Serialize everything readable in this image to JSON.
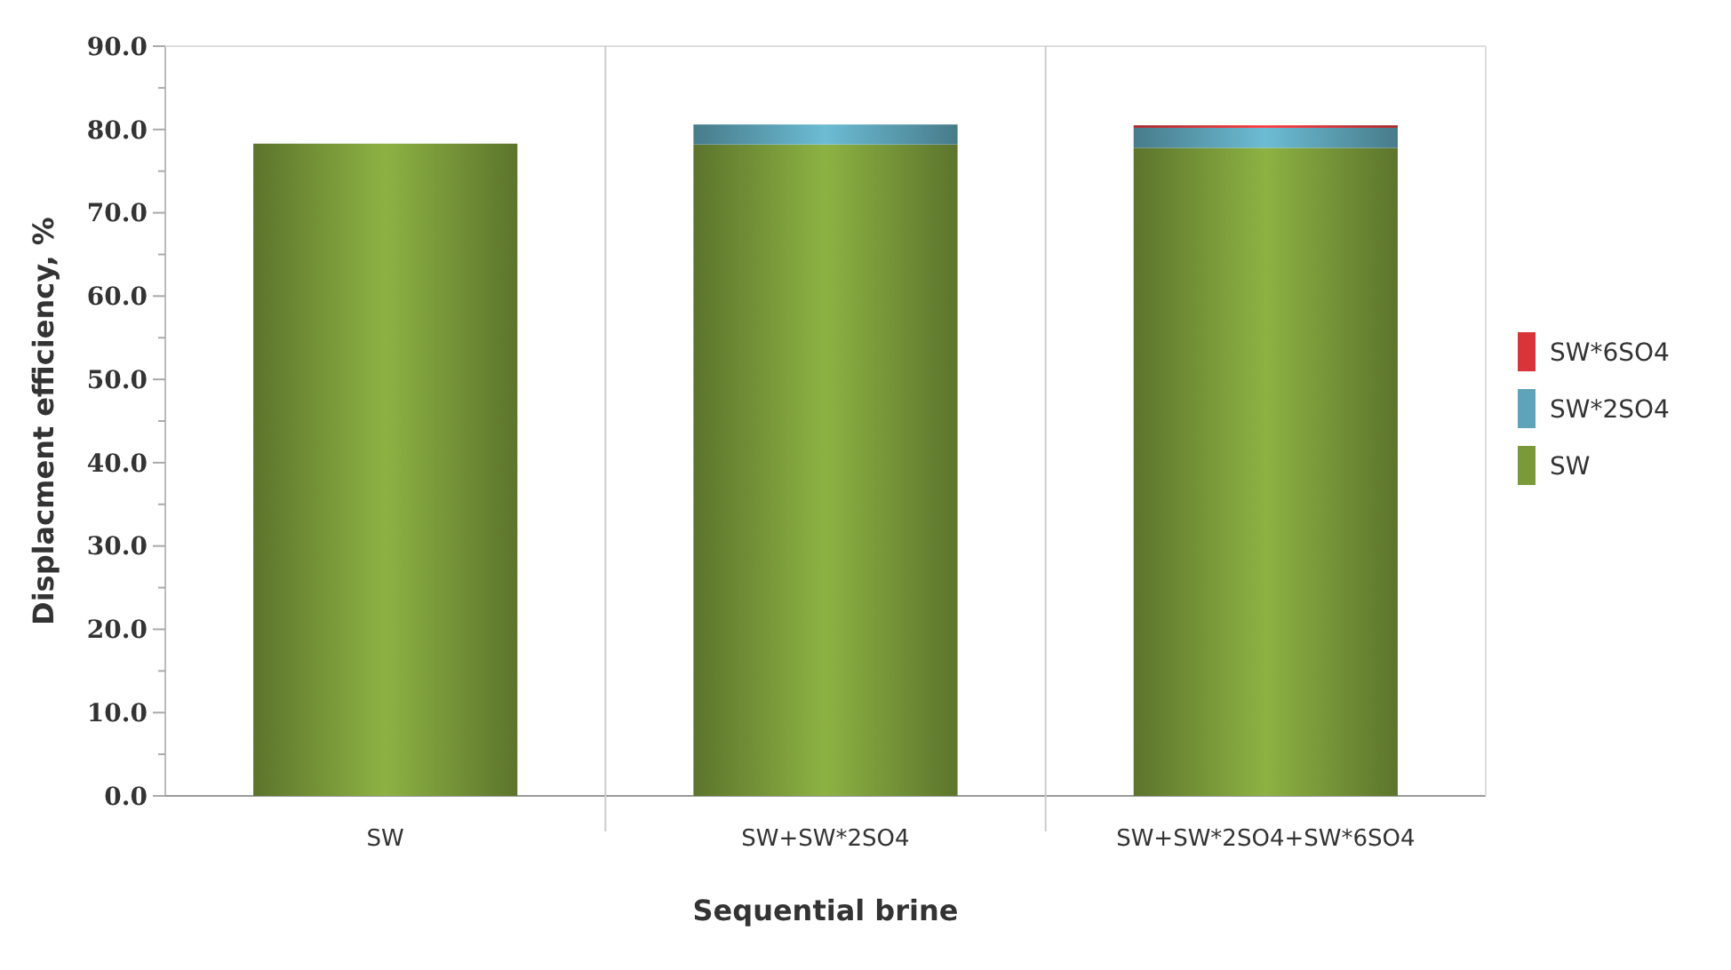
{
  "chart_data": {
    "type": "bar",
    "stacked": true,
    "xlabel": "Sequential brine",
    "ylabel": "Displacment efficiency, %",
    "categories": [
      "SW",
      "SW+SW*2SO4",
      "SW+SW*2SO4+SW*6SO4"
    ],
    "series": [
      {
        "name": "SW",
        "color": "#7a9a3a",
        "values": [
          78.3,
          78.2,
          77.8
        ]
      },
      {
        "name": "SW*2SO4",
        "color": "#5ea3b8",
        "values": [
          null,
          2.4,
          2.4
        ]
      },
      {
        "name": "SW*6SO4",
        "color": "#d9343a",
        "values": [
          null,
          null,
          0.3
        ]
      }
    ],
    "ylim": [
      0,
      90
    ],
    "yticks": [
      {
        "value": 0,
        "label": "0.0"
      },
      {
        "value": 5,
        "label": null
      },
      {
        "value": 10,
        "label": "10.0"
      },
      {
        "value": 15,
        "label": null
      },
      {
        "value": 20,
        "label": "20.0"
      },
      {
        "value": 25,
        "label": null
      },
      {
        "value": 30,
        "label": "30.0"
      },
      {
        "value": 35,
        "label": null
      },
      {
        "value": 40,
        "label": "40.0"
      },
      {
        "value": 45,
        "label": null
      },
      {
        "value": 50,
        "label": "50.0"
      },
      {
        "value": 55,
        "label": null
      },
      {
        "value": 60,
        "label": "60.0"
      },
      {
        "value": 65,
        "label": null
      },
      {
        "value": 70,
        "label": "70.0"
      },
      {
        "value": 75,
        "label": null
      },
      {
        "value": 80,
        "label": "80.0"
      },
      {
        "value": 85,
        "label": null
      },
      {
        "value": 90,
        "label": "90.0"
      }
    ],
    "grid": false,
    "legend": "right"
  }
}
